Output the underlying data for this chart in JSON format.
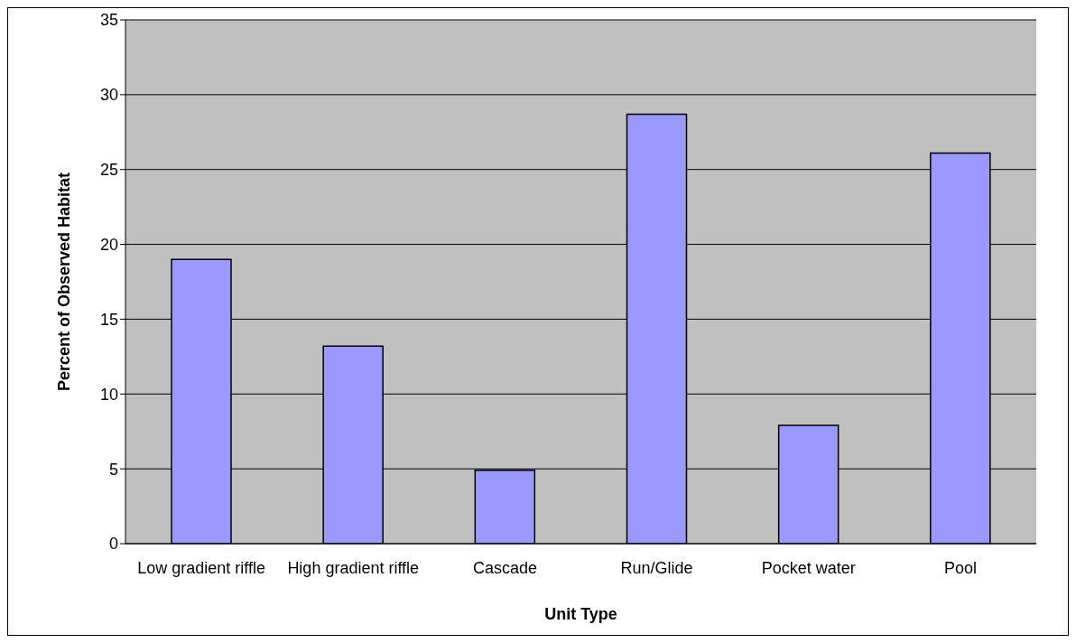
{
  "chart_data": {
    "type": "bar",
    "xlabel": "Unit Type",
    "ylabel": "Percent of Observed Habitat",
    "categories": [
      "Low gradient riffle",
      "High gradient riffle",
      "Cascade",
      "Run/Glide",
      "Pocket water",
      "Pool"
    ],
    "values": [
      19.0,
      13.2,
      4.9,
      28.7,
      7.9,
      26.1
    ],
    "color": "#9999ff",
    "ylim": [
      0,
      35
    ],
    "yticks": [
      0,
      5,
      10,
      15,
      20,
      25,
      30,
      35
    ],
    "grid": "y"
  }
}
